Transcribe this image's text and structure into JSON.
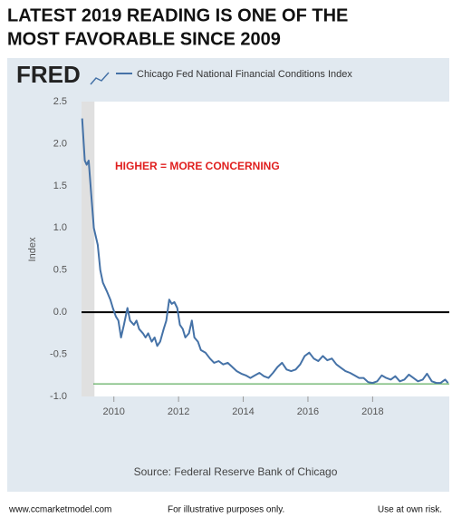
{
  "chart_data": {
    "type": "line",
    "title_lines": [
      "LATEST 2019 READING IS ONE OF THE",
      "MOST FAVORABLE SINCE 2009"
    ],
    "logo": "FRED",
    "annotation": "HIGHER = MORE CONCERNING",
    "ylabel": "Index",
    "source": "Source: Federal Reserve Bank of Chicago",
    "footer": [
      "www.ccmarketmodel.com",
      "For illustrative purposes only.",
      "Use at own risk."
    ],
    "xlim": [
      2009.0,
      2020.37
    ],
    "xticks": [
      2010,
      2012,
      2014,
      2016,
      2018
    ],
    "ylim": [
      -1.0,
      2.5
    ],
    "yticks": [
      2.5,
      {
        "value": 2.0,
        "label": "2.0"
      },
      1.5,
      {
        "value": 1.0,
        "label": "1.0"
      },
      0.5,
      {
        "value": 0.0,
        "label": "0.0"
      },
      -0.5,
      {
        "value": -1.0,
        "label": "-1.0"
      }
    ],
    "zero_line": 0,
    "zero_line_color": "#000000",
    "threshold_line": -0.85,
    "threshold_color": "#3a9a3a",
    "shaded_range": [
      2009.0,
      2009.4
    ],
    "x": [
      2009.02,
      2009.1,
      2009.16,
      2009.22,
      2009.3,
      2009.38,
      2009.5,
      2009.58,
      2009.66,
      2009.78,
      2009.89,
      2009.97,
      2010.06,
      2010.14,
      2010.22,
      2010.31,
      2010.42,
      2010.5,
      2010.62,
      2010.7,
      2010.78,
      2010.9,
      2010.98,
      2011.06,
      2011.17,
      2011.26,
      2011.34,
      2011.43,
      2011.54,
      2011.62,
      2011.71,
      2011.79,
      2011.87,
      2011.96,
      2012.04,
      2012.13,
      2012.21,
      2012.32,
      2012.41,
      2012.49,
      2012.6,
      2012.69,
      2012.83,
      2012.97,
      2013.1,
      2013.24,
      2013.38,
      2013.52,
      2013.66,
      2013.8,
      2013.94,
      2014.08,
      2014.22,
      2014.36,
      2014.5,
      2014.64,
      2014.78,
      2014.92,
      2015.06,
      2015.2,
      2015.34,
      2015.48,
      2015.62,
      2015.76,
      2015.9,
      2016.04,
      2016.18,
      2016.32,
      2016.46,
      2016.6,
      2016.74,
      2016.88,
      2017.02,
      2017.16,
      2017.3,
      2017.44,
      2017.58,
      2017.72,
      2017.86,
      2018.0,
      2018.14,
      2018.28,
      2018.42,
      2018.56,
      2018.7,
      2018.84,
      2018.98,
      2019.12,
      2019.26,
      2019.4,
      2019.55,
      2019.68,
      2019.83,
      2019.97,
      2020.1,
      2020.24,
      2020.33
    ],
    "series": [
      {
        "name": "Chicago Fed National Financial Conditions Index",
        "color": "#4572a7",
        "values": [
          2.3,
          1.8,
          1.75,
          1.8,
          1.4,
          1.0,
          0.8,
          0.5,
          0.35,
          0.25,
          0.15,
          0.05,
          -0.05,
          -0.1,
          -0.3,
          -0.15,
          0.05,
          -0.1,
          -0.15,
          -0.1,
          -0.2,
          -0.25,
          -0.3,
          -0.25,
          -0.35,
          -0.3,
          -0.4,
          -0.35,
          -0.2,
          -0.1,
          0.15,
          0.1,
          0.12,
          0.05,
          -0.15,
          -0.2,
          -0.3,
          -0.25,
          -0.1,
          -0.3,
          -0.35,
          -0.45,
          -0.48,
          -0.55,
          -0.6,
          -0.58,
          -0.62,
          -0.6,
          -0.65,
          -0.7,
          -0.73,
          -0.75,
          -0.78,
          -0.75,
          -0.72,
          -0.76,
          -0.78,
          -0.72,
          -0.65,
          -0.6,
          -0.68,
          -0.7,
          -0.68,
          -0.62,
          -0.52,
          -0.48,
          -0.55,
          -0.58,
          -0.52,
          -0.57,
          -0.55,
          -0.62,
          -0.66,
          -0.7,
          -0.72,
          -0.75,
          -0.78,
          -0.78,
          -0.83,
          -0.84,
          -0.82,
          -0.75,
          -0.78,
          -0.8,
          -0.76,
          -0.82,
          -0.8,
          -0.74,
          -0.78,
          -0.82,
          -0.8,
          -0.73,
          -0.82,
          -0.84,
          -0.84,
          -0.8,
          -0.84
        ]
      }
    ],
    "grid": false
  }
}
